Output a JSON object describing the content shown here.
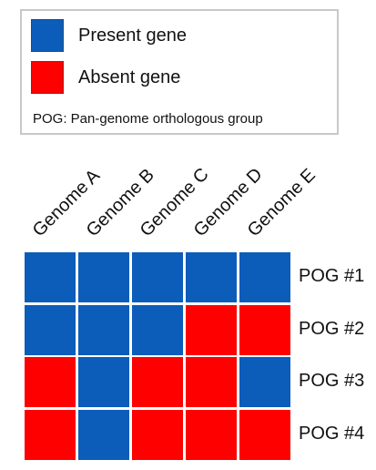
{
  "colors": {
    "present": "#0c5cba",
    "absent": "#fe0000"
  },
  "legend": {
    "items": [
      {
        "label": "Present gene",
        "state": "present"
      },
      {
        "label": "Absent gene",
        "state": "absent"
      }
    ],
    "note": "POG: Pan-genome orthologous group"
  },
  "columns": [
    "Genome A",
    "Genome B",
    "Genome C",
    "Genome D",
    "Genome E"
  ],
  "rows": [
    {
      "label": "POG #1",
      "cells": [
        "present",
        "present",
        "present",
        "present",
        "present"
      ]
    },
    {
      "label": "POG #2",
      "cells": [
        "present",
        "present",
        "present",
        "absent",
        "absent"
      ]
    },
    {
      "label": "POG #3",
      "cells": [
        "absent",
        "present",
        "absent",
        "absent",
        "present"
      ]
    },
    {
      "label": "POG #4",
      "cells": [
        "absent",
        "present",
        "absent",
        "absent",
        "absent"
      ]
    }
  ]
}
